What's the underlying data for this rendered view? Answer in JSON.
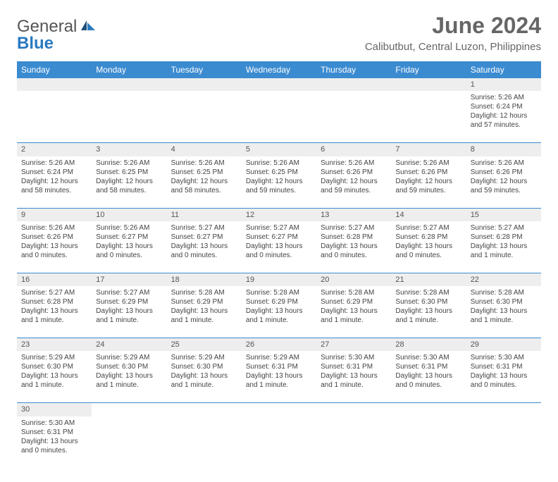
{
  "brand": {
    "word1": "General",
    "word2": "Blue"
  },
  "title": "June 2024",
  "location": "Calibutbut, Central Luzon, Philippines",
  "day_headers": [
    "Sunday",
    "Monday",
    "Tuesday",
    "Wednesday",
    "Thursday",
    "Friday",
    "Saturday"
  ],
  "colors": {
    "header_bg": "#3b8bd0",
    "header_text": "#ffffff",
    "row_border": "#3b8bd0",
    "daynum_bg": "#eeeeee",
    "text": "#444444",
    "title_text": "#666666",
    "logo_gray": "#555555",
    "logo_blue": "#2a7ac0"
  },
  "weeks": [
    [
      null,
      null,
      null,
      null,
      null,
      null,
      {
        "n": "1",
        "sunrise": "Sunrise: 5:26 AM",
        "sunset": "Sunset: 6:24 PM",
        "daylight1": "Daylight: 12 hours",
        "daylight2": "and 57 minutes."
      }
    ],
    [
      {
        "n": "2",
        "sunrise": "Sunrise: 5:26 AM",
        "sunset": "Sunset: 6:24 PM",
        "daylight1": "Daylight: 12 hours",
        "daylight2": "and 58 minutes."
      },
      {
        "n": "3",
        "sunrise": "Sunrise: 5:26 AM",
        "sunset": "Sunset: 6:25 PM",
        "daylight1": "Daylight: 12 hours",
        "daylight2": "and 58 minutes."
      },
      {
        "n": "4",
        "sunrise": "Sunrise: 5:26 AM",
        "sunset": "Sunset: 6:25 PM",
        "daylight1": "Daylight: 12 hours",
        "daylight2": "and 58 minutes."
      },
      {
        "n": "5",
        "sunrise": "Sunrise: 5:26 AM",
        "sunset": "Sunset: 6:25 PM",
        "daylight1": "Daylight: 12 hours",
        "daylight2": "and 59 minutes."
      },
      {
        "n": "6",
        "sunrise": "Sunrise: 5:26 AM",
        "sunset": "Sunset: 6:26 PM",
        "daylight1": "Daylight: 12 hours",
        "daylight2": "and 59 minutes."
      },
      {
        "n": "7",
        "sunrise": "Sunrise: 5:26 AM",
        "sunset": "Sunset: 6:26 PM",
        "daylight1": "Daylight: 12 hours",
        "daylight2": "and 59 minutes."
      },
      {
        "n": "8",
        "sunrise": "Sunrise: 5:26 AM",
        "sunset": "Sunset: 6:26 PM",
        "daylight1": "Daylight: 12 hours",
        "daylight2": "and 59 minutes."
      }
    ],
    [
      {
        "n": "9",
        "sunrise": "Sunrise: 5:26 AM",
        "sunset": "Sunset: 6:26 PM",
        "daylight1": "Daylight: 13 hours",
        "daylight2": "and 0 minutes."
      },
      {
        "n": "10",
        "sunrise": "Sunrise: 5:26 AM",
        "sunset": "Sunset: 6:27 PM",
        "daylight1": "Daylight: 13 hours",
        "daylight2": "and 0 minutes."
      },
      {
        "n": "11",
        "sunrise": "Sunrise: 5:27 AM",
        "sunset": "Sunset: 6:27 PM",
        "daylight1": "Daylight: 13 hours",
        "daylight2": "and 0 minutes."
      },
      {
        "n": "12",
        "sunrise": "Sunrise: 5:27 AM",
        "sunset": "Sunset: 6:27 PM",
        "daylight1": "Daylight: 13 hours",
        "daylight2": "and 0 minutes."
      },
      {
        "n": "13",
        "sunrise": "Sunrise: 5:27 AM",
        "sunset": "Sunset: 6:28 PM",
        "daylight1": "Daylight: 13 hours",
        "daylight2": "and 0 minutes."
      },
      {
        "n": "14",
        "sunrise": "Sunrise: 5:27 AM",
        "sunset": "Sunset: 6:28 PM",
        "daylight1": "Daylight: 13 hours",
        "daylight2": "and 0 minutes."
      },
      {
        "n": "15",
        "sunrise": "Sunrise: 5:27 AM",
        "sunset": "Sunset: 6:28 PM",
        "daylight1": "Daylight: 13 hours",
        "daylight2": "and 1 minute."
      }
    ],
    [
      {
        "n": "16",
        "sunrise": "Sunrise: 5:27 AM",
        "sunset": "Sunset: 6:28 PM",
        "daylight1": "Daylight: 13 hours",
        "daylight2": "and 1 minute."
      },
      {
        "n": "17",
        "sunrise": "Sunrise: 5:27 AM",
        "sunset": "Sunset: 6:29 PM",
        "daylight1": "Daylight: 13 hours",
        "daylight2": "and 1 minute."
      },
      {
        "n": "18",
        "sunrise": "Sunrise: 5:28 AM",
        "sunset": "Sunset: 6:29 PM",
        "daylight1": "Daylight: 13 hours",
        "daylight2": "and 1 minute."
      },
      {
        "n": "19",
        "sunrise": "Sunrise: 5:28 AM",
        "sunset": "Sunset: 6:29 PM",
        "daylight1": "Daylight: 13 hours",
        "daylight2": "and 1 minute."
      },
      {
        "n": "20",
        "sunrise": "Sunrise: 5:28 AM",
        "sunset": "Sunset: 6:29 PM",
        "daylight1": "Daylight: 13 hours",
        "daylight2": "and 1 minute."
      },
      {
        "n": "21",
        "sunrise": "Sunrise: 5:28 AM",
        "sunset": "Sunset: 6:30 PM",
        "daylight1": "Daylight: 13 hours",
        "daylight2": "and 1 minute."
      },
      {
        "n": "22",
        "sunrise": "Sunrise: 5:28 AM",
        "sunset": "Sunset: 6:30 PM",
        "daylight1": "Daylight: 13 hours",
        "daylight2": "and 1 minute."
      }
    ],
    [
      {
        "n": "23",
        "sunrise": "Sunrise: 5:29 AM",
        "sunset": "Sunset: 6:30 PM",
        "daylight1": "Daylight: 13 hours",
        "daylight2": "and 1 minute."
      },
      {
        "n": "24",
        "sunrise": "Sunrise: 5:29 AM",
        "sunset": "Sunset: 6:30 PM",
        "daylight1": "Daylight: 13 hours",
        "daylight2": "and 1 minute."
      },
      {
        "n": "25",
        "sunrise": "Sunrise: 5:29 AM",
        "sunset": "Sunset: 6:30 PM",
        "daylight1": "Daylight: 13 hours",
        "daylight2": "and 1 minute."
      },
      {
        "n": "26",
        "sunrise": "Sunrise: 5:29 AM",
        "sunset": "Sunset: 6:31 PM",
        "daylight1": "Daylight: 13 hours",
        "daylight2": "and 1 minute."
      },
      {
        "n": "27",
        "sunrise": "Sunrise: 5:30 AM",
        "sunset": "Sunset: 6:31 PM",
        "daylight1": "Daylight: 13 hours",
        "daylight2": "and 1 minute."
      },
      {
        "n": "28",
        "sunrise": "Sunrise: 5:30 AM",
        "sunset": "Sunset: 6:31 PM",
        "daylight1": "Daylight: 13 hours",
        "daylight2": "and 0 minutes."
      },
      {
        "n": "29",
        "sunrise": "Sunrise: 5:30 AM",
        "sunset": "Sunset: 6:31 PM",
        "daylight1": "Daylight: 13 hours",
        "daylight2": "and 0 minutes."
      }
    ],
    [
      {
        "n": "30",
        "sunrise": "Sunrise: 5:30 AM",
        "sunset": "Sunset: 6:31 PM",
        "daylight1": "Daylight: 13 hours",
        "daylight2": "and 0 minutes."
      },
      null,
      null,
      null,
      null,
      null,
      null
    ]
  ]
}
